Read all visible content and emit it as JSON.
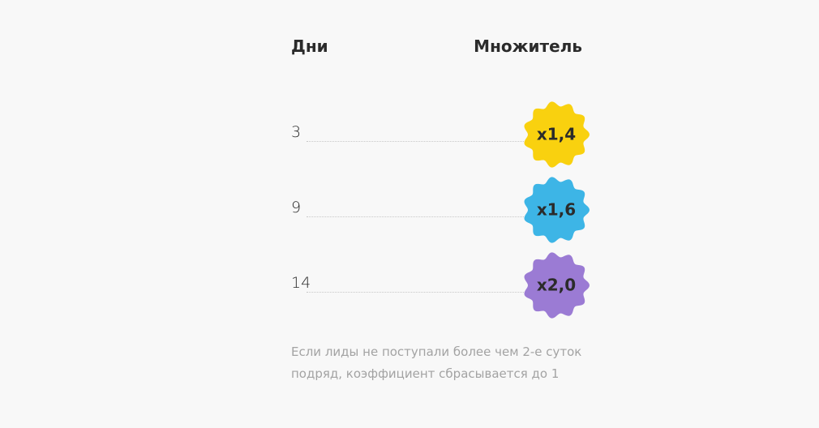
{
  "header": {
    "days": "Дни",
    "multiplier": "Множитель"
  },
  "rows": [
    {
      "days": "3",
      "multiplier": "x1,4",
      "color": "#f9d10f"
    },
    {
      "days": "9",
      "multiplier": "x1,6",
      "color": "#3db5e6"
    },
    {
      "days": "14",
      "multiplier": "x2,0",
      "color": "#9b7bd4"
    }
  ],
  "note": [
    "Если лиды не поступали более чем 2-е суток",
    "подряд, коэффициент сбрасывается до 1"
  ]
}
